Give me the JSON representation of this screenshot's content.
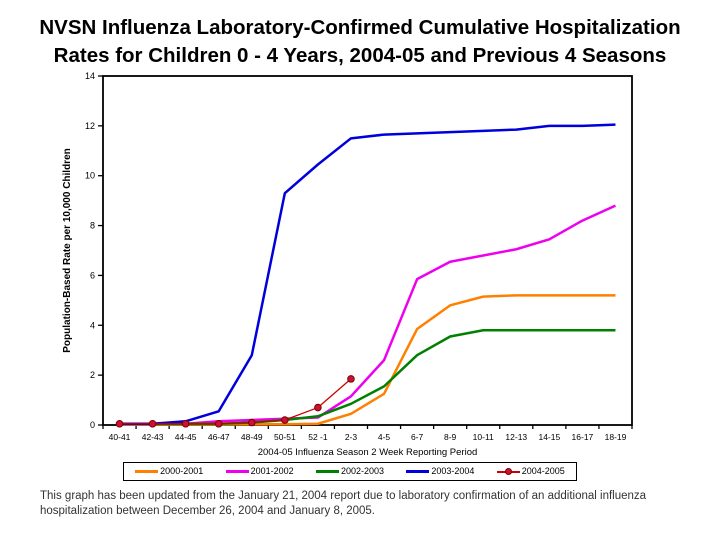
{
  "title": {
    "lines": [
      "NVSN Influenza Laboratory-Confirmed Cumulative Hospitalization",
      "Rates for Children 0 - 4 Years, 2004-05 and Previous 4 Seasons"
    ]
  },
  "chart_data": {
    "type": "line",
    "title": "NVSN Influenza Laboratory-Confirmed Cumulative Hospitalization Rates for Children 0 - 4 Years, 2004-05 and Previous 4 Seasons",
    "categories": [
      "40-41",
      "42-43",
      "44-45",
      "46-47",
      "48-49",
      "50-51",
      "52 -1",
      "2-3",
      "4-5",
      "6-7",
      "8-9",
      "10-11",
      "12-13",
      "14-15",
      "16-17",
      "18-19"
    ],
    "xlabel": "2004-05 Influenza Season 2 Week Reporting Period",
    "ylabel": "Population-Based Rate per 10,000 Children",
    "ylim": [
      0,
      14
    ],
    "yticks": [
      0,
      2,
      4,
      6,
      8,
      10,
      12,
      14
    ],
    "grid": false,
    "legend_position": "bottom",
    "series": [
      {
        "name": "2000-2001",
        "color": "#FF8000",
        "line_width": 2.5,
        "values": [
          0.02,
          0.02,
          0.02,
          0.02,
          0.03,
          0.03,
          0.05,
          0.45,
          1.25,
          3.85,
          4.8,
          5.15,
          5.2,
          5.2,
          5.2,
          5.2
        ]
      },
      {
        "name": "2001-2002",
        "color": "#EE00EE",
        "line_width": 2.5,
        "values": [
          0.05,
          0.05,
          0.05,
          0.15,
          0.2,
          0.25,
          0.3,
          1.15,
          2.6,
          5.85,
          6.55,
          6.8,
          7.05,
          7.45,
          8.2,
          8.8
        ]
      },
      {
        "name": "2002-2003",
        "color": "#008000",
        "line_width": 2.5,
        "values": [
          0.05,
          0.05,
          0.05,
          0.05,
          0.1,
          0.2,
          0.35,
          0.85,
          1.55,
          2.8,
          3.55,
          3.8,
          3.8,
          3.8,
          3.8,
          3.8
        ]
      },
      {
        "name": "2003-2004",
        "color": "#0000DD",
        "line_width": 2.5,
        "values": [
          0.05,
          0.05,
          0.15,
          0.55,
          2.8,
          9.3,
          10.45,
          11.5,
          11.65,
          11.7,
          11.75,
          11.8,
          11.85,
          12.0,
          12.0,
          12.05
        ]
      },
      {
        "name": "2004-2005",
        "color": "#CC0000",
        "line_width": 1.3,
        "marker": "circle",
        "marker_color": "#CC1133",
        "values": [
          0.05,
          0.05,
          0.05,
          0.05,
          0.1,
          0.2,
          0.7,
          1.85
        ]
      }
    ]
  },
  "footnote": "This graph has been updated from the January 21, 2004 report due to laboratory confirmation of an additional influenza hospitalization between December 26, 2004 and January 8, 2005."
}
